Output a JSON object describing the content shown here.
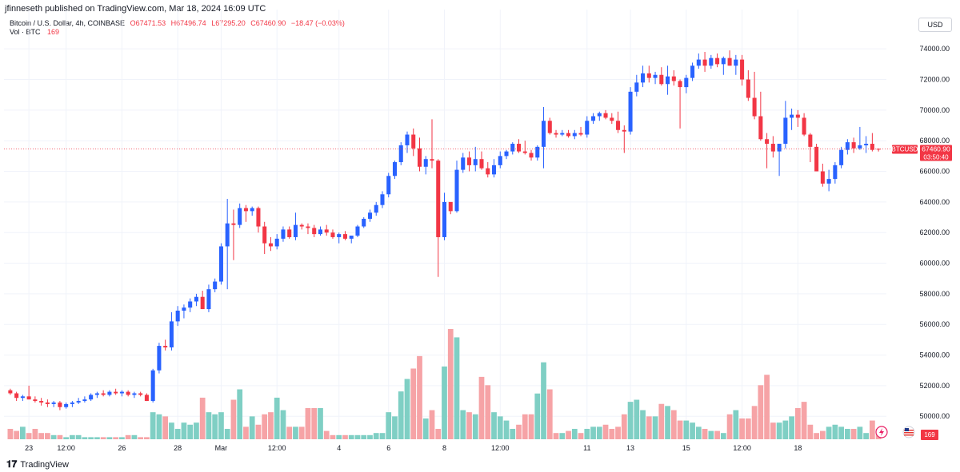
{
  "publisher_line": "jfinneseth published on TradingView.com, Mar 18, 2024 16:09 UTC",
  "legend": {
    "symbol": "Bitcoin / U.S. Dollar, 4h, COINBASE",
    "open": "O67471.53",
    "high": "H67496.74",
    "low": "L67295.20",
    "close": "C67460.90",
    "change": "−18.47 (−0.03%)",
    "volume_label": "Vol · BTC",
    "volume_value": "169"
  },
  "currency": "USD",
  "price_tag": {
    "symbol": "BTCUSD",
    "price": "67460.90",
    "countdown": "03:50:40"
  },
  "volume_badge": "169",
  "footer": {
    "brand": "TradingView"
  },
  "colors": {
    "up": "#2962ff",
    "down": "#f23645",
    "vol_up": "#7fcfc4",
    "vol_down": "#f6a3a6",
    "grid": "#f0f3fa"
  },
  "chart_data": {
    "type": "candlestick",
    "ylim": [
      48500,
      75000
    ],
    "y_ticks": [
      "74000.00",
      "72000.00",
      "70000.00",
      "68000.00",
      "66000.00",
      "64000.00",
      "62000.00",
      "60000.00",
      "58000.00",
      "56000.00",
      "54000.00",
      "52000.00",
      "50000.00"
    ],
    "x_ticks": [
      "23",
      "12:00",
      "26",
      "28",
      "Mar",
      "12:00",
      "4",
      "6",
      "8",
      "12:00",
      "11",
      "13",
      "15",
      "12:00",
      "18"
    ],
    "last_price": 67460.9,
    "candles": [
      [
        51700,
        51800,
        51400,
        51500
      ],
      [
        51500,
        51600,
        51000,
        51200
      ],
      [
        51200,
        51400,
        51000,
        51300
      ],
      [
        51300,
        52000,
        51100,
        51100
      ],
      [
        51100,
        51300,
        50900,
        51000
      ],
      [
        51000,
        51200,
        50700,
        50900
      ],
      [
        50900,
        51100,
        50600,
        50800
      ],
      [
        50800,
        51000,
        50600,
        50900
      ],
      [
        50900,
        51000,
        50400,
        50600
      ],
      [
        50600,
        50900,
        50500,
        50800
      ],
      [
        50800,
        51000,
        50600,
        50900
      ],
      [
        50900,
        51200,
        50800,
        51000
      ],
      [
        51000,
        51300,
        50900,
        51100
      ],
      [
        51100,
        51500,
        51000,
        51400
      ],
      [
        51400,
        51600,
        51200,
        51500
      ],
      [
        51500,
        51700,
        51300,
        51400
      ],
      [
        51400,
        51700,
        51300,
        51600
      ],
      [
        51600,
        51800,
        51400,
        51500
      ],
      [
        51500,
        51700,
        51300,
        51600
      ],
      [
        51600,
        51700,
        51300,
        51400
      ],
      [
        51400,
        51600,
        51200,
        51500
      ],
      [
        51500,
        51600,
        51300,
        51400
      ],
      [
        51400,
        51500,
        51000,
        51000
      ],
      [
        51000,
        53100,
        50900,
        53000
      ],
      [
        53000,
        54800,
        52800,
        54600
      ],
      [
        54600,
        55000,
        54300,
        54500
      ],
      [
        54500,
        56800,
        54300,
        56200
      ],
      [
        56200,
        57200,
        55900,
        56900
      ],
      [
        56900,
        57300,
        56400,
        57100
      ],
      [
        57100,
        57700,
        56800,
        57500
      ],
      [
        57500,
        58000,
        57200,
        57800
      ],
      [
        57800,
        58200,
        57000,
        57000
      ],
      [
        57000,
        58600,
        56800,
        58300
      ],
      [
        58300,
        59000,
        58100,
        58800
      ],
      [
        58800,
        61300,
        58600,
        61100
      ],
      [
        61100,
        64200,
        58300,
        62600
      ],
      [
        62600,
        63500,
        60200,
        62500
      ],
      [
        62500,
        63900,
        62300,
        63600
      ],
      [
        63600,
        63800,
        62700,
        63400
      ],
      [
        63400,
        63700,
        63100,
        63600
      ],
      [
        63600,
        63700,
        62000,
        62400
      ],
      [
        62400,
        62700,
        60600,
        61300
      ],
      [
        61300,
        61700,
        60800,
        61100
      ],
      [
        61100,
        61900,
        60900,
        61600
      ],
      [
        61600,
        62400,
        61400,
        62200
      ],
      [
        62200,
        62400,
        61600,
        61700
      ],
      [
        61700,
        63300,
        61500,
        62500
      ],
      [
        62500,
        62600,
        62200,
        62400
      ],
      [
        62400,
        62600,
        61900,
        62300
      ],
      [
        62300,
        62500,
        61700,
        61900
      ],
      [
        61900,
        62400,
        61800,
        62200
      ],
      [
        62200,
        62500,
        61800,
        62000
      ],
      [
        62000,
        62200,
        61600,
        61700
      ],
      [
        61700,
        62000,
        61300,
        61900
      ],
      [
        61900,
        62100,
        61500,
        61600
      ],
      [
        61600,
        61800,
        61300,
        61800
      ],
      [
        61800,
        62500,
        61700,
        62400
      ],
      [
        62400,
        63000,
        62300,
        62900
      ],
      [
        62900,
        63500,
        62700,
        63300
      ],
      [
        63300,
        64000,
        63100,
        63800
      ],
      [
        63800,
        64700,
        63600,
        64500
      ],
      [
        64500,
        65900,
        64300,
        65700
      ],
      [
        65700,
        66700,
        65500,
        66600
      ],
      [
        66600,
        67900,
        66400,
        67700
      ],
      [
        67700,
        68600,
        67200,
        68400
      ],
      [
        68400,
        68800,
        67000,
        67500
      ],
      [
        67500,
        68200,
        66000,
        66300
      ],
      [
        66300,
        67000,
        65800,
        66800
      ],
      [
        66800,
        69400,
        66200,
        66700
      ],
      [
        66700,
        66800,
        59100,
        61700
      ],
      [
        61700,
        64600,
        61500,
        64000
      ],
      [
        64000,
        63800,
        63200,
        63400
      ],
      [
        63400,
        66700,
        63300,
        66100
      ],
      [
        66100,
        67200,
        65900,
        66900
      ],
      [
        66900,
        67300,
        66000,
        66400
      ],
      [
        66400,
        67600,
        66000,
        66800
      ],
      [
        66800,
        67300,
        66100,
        66200
      ],
      [
        66200,
        66600,
        65600,
        65800
      ],
      [
        65800,
        66800,
        65600,
        66400
      ],
      [
        66400,
        67300,
        66200,
        67000
      ],
      [
        67000,
        67400,
        66800,
        67300
      ],
      [
        67300,
        67900,
        67100,
        67800
      ],
      [
        67800,
        68100,
        67200,
        67300
      ],
      [
        67300,
        68000,
        67100,
        67200
      ],
      [
        67200,
        67400,
        66700,
        66900
      ],
      [
        66900,
        67700,
        66700,
        67600
      ],
      [
        67600,
        70200,
        66200,
        69300
      ],
      [
        69300,
        69500,
        68400,
        68500
      ],
      [
        68500,
        68700,
        68200,
        68400
      ],
      [
        68400,
        68700,
        68300,
        68500
      ],
      [
        68500,
        68700,
        68200,
        68300
      ],
      [
        68300,
        68700,
        68100,
        68500
      ],
      [
        68500,
        68900,
        68300,
        68400
      ],
      [
        68400,
        69600,
        68200,
        69300
      ],
      [
        69300,
        69800,
        69100,
        69600
      ],
      [
        69600,
        69900,
        69300,
        69800
      ],
      [
        69800,
        70000,
        69400,
        69500
      ],
      [
        69500,
        69800,
        69100,
        69300
      ],
      [
        69300,
        69900,
        68500,
        68700
      ],
      [
        68700,
        69000,
        67200,
        68600
      ],
      [
        68600,
        71500,
        68400,
        71200
      ],
      [
        71200,
        72300,
        70900,
        71800
      ],
      [
        71800,
        72900,
        71500,
        72400
      ],
      [
        72400,
        72900,
        71800,
        72100
      ],
      [
        72100,
        72500,
        71700,
        72300
      ],
      [
        72300,
        72800,
        71600,
        71700
      ],
      [
        71700,
        72900,
        71000,
        72200
      ],
      [
        72200,
        72600,
        71600,
        71900
      ],
      [
        71900,
        72000,
        68800,
        71500
      ],
      [
        71500,
        72300,
        71100,
        72100
      ],
      [
        72100,
        73100,
        71900,
        72900
      ],
      [
        72900,
        73700,
        72700,
        73300
      ],
      [
        73300,
        73800,
        72500,
        72900
      ],
      [
        72900,
        73600,
        72700,
        73400
      ],
      [
        73400,
        73700,
        72800,
        73000
      ],
      [
        73000,
        73500,
        72300,
        73400
      ],
      [
        73400,
        73900,
        72900,
        72900
      ],
      [
        72900,
        73600,
        72300,
        73300
      ],
      [
        73300,
        73600,
        71600,
        72000
      ],
      [
        72000,
        72600,
        70600,
        70800
      ],
      [
        70800,
        72500,
        69400,
        69600
      ],
      [
        69600,
        71200,
        68000,
        68100
      ],
      [
        68100,
        68500,
        66200,
        67800
      ],
      [
        67800,
        68300,
        66900,
        67300
      ],
      [
        67300,
        67800,
        65700,
        67800
      ],
      [
        67800,
        70600,
        67500,
        69500
      ],
      [
        69500,
        70100,
        68700,
        69700
      ],
      [
        69700,
        70000,
        68900,
        69500
      ],
      [
        69500,
        69800,
        68300,
        68400
      ],
      [
        68400,
        68500,
        66600,
        67600
      ],
      [
        67600,
        67800,
        66000,
        66000
      ],
      [
        66000,
        66500,
        65000,
        65200
      ],
      [
        65200,
        66100,
        64700,
        65500
      ],
      [
        65500,
        66600,
        65200,
        66400
      ],
      [
        66400,
        67600,
        66200,
        67400
      ],
      [
        67400,
        68100,
        67100,
        67900
      ],
      [
        67900,
        68200,
        67200,
        67500
      ],
      [
        67500,
        68900,
        67400,
        67700
      ],
      [
        67700,
        68300,
        67200,
        67800
      ],
      [
        67800,
        68500,
        67300,
        67400
      ],
      [
        67471.53,
        67496.74,
        67295.2,
        67460.9
      ]
    ],
    "volumes": [
      5,
      4,
      6,
      3,
      5,
      3,
      3,
      2,
      2,
      1,
      2,
      2,
      1,
      1,
      1,
      1,
      1,
      1,
      1,
      2,
      2,
      1,
      1,
      13,
      12,
      11,
      8,
      5,
      8,
      7,
      8,
      20,
      13,
      12,
      13,
      5,
      19,
      24,
      6,
      11,
      7,
      12,
      13,
      20,
      14,
      6,
      6,
      6,
      15,
      15,
      15,
      4,
      2,
      2,
      2,
      2,
      2,
      2,
      2,
      3,
      3,
      13,
      11,
      23,
      29,
      34,
      40,
      10,
      14,
      5,
      35,
      53,
      49,
      14,
      13,
      12,
      30,
      26,
      13,
      11,
      9,
      5,
      7,
      12,
      12,
      22,
      37,
      24,
      3,
      3,
      4,
      5,
      3,
      5,
      6,
      6,
      7,
      5,
      6,
      12,
      18,
      19,
      14,
      11,
      11,
      17,
      16,
      14,
      9,
      9,
      8,
      6,
      5,
      4,
      4,
      3,
      12,
      14,
      10,
      10,
      16,
      26,
      31,
      8,
      8,
      9,
      11,
      15,
      18,
      7,
      3,
      4,
      6,
      7,
      6,
      5,
      5,
      6,
      3,
      9
    ]
  }
}
